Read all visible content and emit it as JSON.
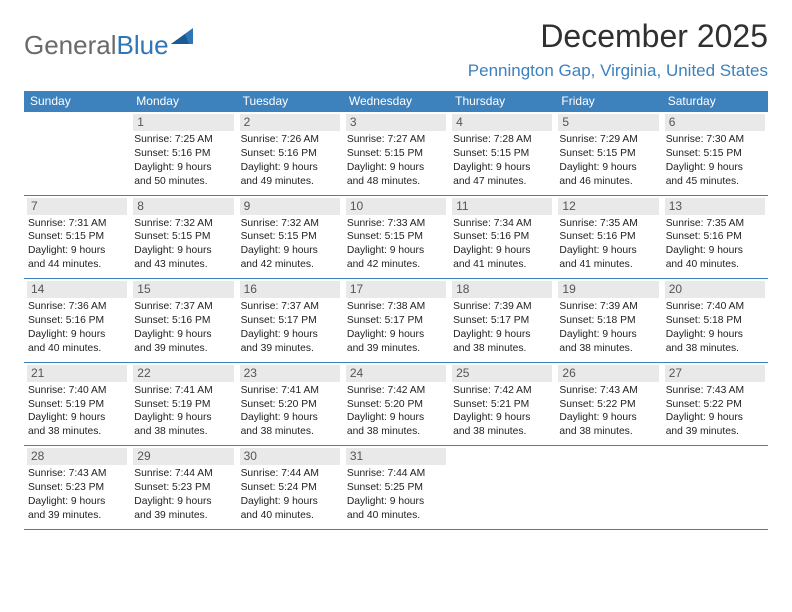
{
  "logo": {
    "text1": "General",
    "text2": "Blue",
    "color1": "#6a6a6a",
    "color2": "#2f76b6"
  },
  "title": "December 2025",
  "location": "Pennington Gap, Virginia, United States",
  "header_bg": "#3d81bd",
  "weekdays": [
    "Sunday",
    "Monday",
    "Tuesday",
    "Wednesday",
    "Thursday",
    "Friday",
    "Saturday"
  ],
  "weeks": [
    [
      null,
      {
        "n": "1",
        "sr": "Sunrise: 7:25 AM",
        "ss": "Sunset: 5:16 PM",
        "d1": "Daylight: 9 hours",
        "d2": "and 50 minutes."
      },
      {
        "n": "2",
        "sr": "Sunrise: 7:26 AM",
        "ss": "Sunset: 5:16 PM",
        "d1": "Daylight: 9 hours",
        "d2": "and 49 minutes."
      },
      {
        "n": "3",
        "sr": "Sunrise: 7:27 AM",
        "ss": "Sunset: 5:15 PM",
        "d1": "Daylight: 9 hours",
        "d2": "and 48 minutes."
      },
      {
        "n": "4",
        "sr": "Sunrise: 7:28 AM",
        "ss": "Sunset: 5:15 PM",
        "d1": "Daylight: 9 hours",
        "d2": "and 47 minutes."
      },
      {
        "n": "5",
        "sr": "Sunrise: 7:29 AM",
        "ss": "Sunset: 5:15 PM",
        "d1": "Daylight: 9 hours",
        "d2": "and 46 minutes."
      },
      {
        "n": "6",
        "sr": "Sunrise: 7:30 AM",
        "ss": "Sunset: 5:15 PM",
        "d1": "Daylight: 9 hours",
        "d2": "and 45 minutes."
      }
    ],
    [
      {
        "n": "7",
        "sr": "Sunrise: 7:31 AM",
        "ss": "Sunset: 5:15 PM",
        "d1": "Daylight: 9 hours",
        "d2": "and 44 minutes."
      },
      {
        "n": "8",
        "sr": "Sunrise: 7:32 AM",
        "ss": "Sunset: 5:15 PM",
        "d1": "Daylight: 9 hours",
        "d2": "and 43 minutes."
      },
      {
        "n": "9",
        "sr": "Sunrise: 7:32 AM",
        "ss": "Sunset: 5:15 PM",
        "d1": "Daylight: 9 hours",
        "d2": "and 42 minutes."
      },
      {
        "n": "10",
        "sr": "Sunrise: 7:33 AM",
        "ss": "Sunset: 5:15 PM",
        "d1": "Daylight: 9 hours",
        "d2": "and 42 minutes."
      },
      {
        "n": "11",
        "sr": "Sunrise: 7:34 AM",
        "ss": "Sunset: 5:16 PM",
        "d1": "Daylight: 9 hours",
        "d2": "and 41 minutes."
      },
      {
        "n": "12",
        "sr": "Sunrise: 7:35 AM",
        "ss": "Sunset: 5:16 PM",
        "d1": "Daylight: 9 hours",
        "d2": "and 41 minutes."
      },
      {
        "n": "13",
        "sr": "Sunrise: 7:35 AM",
        "ss": "Sunset: 5:16 PM",
        "d1": "Daylight: 9 hours",
        "d2": "and 40 minutes."
      }
    ],
    [
      {
        "n": "14",
        "sr": "Sunrise: 7:36 AM",
        "ss": "Sunset: 5:16 PM",
        "d1": "Daylight: 9 hours",
        "d2": "and 40 minutes."
      },
      {
        "n": "15",
        "sr": "Sunrise: 7:37 AM",
        "ss": "Sunset: 5:16 PM",
        "d1": "Daylight: 9 hours",
        "d2": "and 39 minutes."
      },
      {
        "n": "16",
        "sr": "Sunrise: 7:37 AM",
        "ss": "Sunset: 5:17 PM",
        "d1": "Daylight: 9 hours",
        "d2": "and 39 minutes."
      },
      {
        "n": "17",
        "sr": "Sunrise: 7:38 AM",
        "ss": "Sunset: 5:17 PM",
        "d1": "Daylight: 9 hours",
        "d2": "and 39 minutes."
      },
      {
        "n": "18",
        "sr": "Sunrise: 7:39 AM",
        "ss": "Sunset: 5:17 PM",
        "d1": "Daylight: 9 hours",
        "d2": "and 38 minutes."
      },
      {
        "n": "19",
        "sr": "Sunrise: 7:39 AM",
        "ss": "Sunset: 5:18 PM",
        "d1": "Daylight: 9 hours",
        "d2": "and 38 minutes."
      },
      {
        "n": "20",
        "sr": "Sunrise: 7:40 AM",
        "ss": "Sunset: 5:18 PM",
        "d1": "Daylight: 9 hours",
        "d2": "and 38 minutes."
      }
    ],
    [
      {
        "n": "21",
        "sr": "Sunrise: 7:40 AM",
        "ss": "Sunset: 5:19 PM",
        "d1": "Daylight: 9 hours",
        "d2": "and 38 minutes."
      },
      {
        "n": "22",
        "sr": "Sunrise: 7:41 AM",
        "ss": "Sunset: 5:19 PM",
        "d1": "Daylight: 9 hours",
        "d2": "and 38 minutes."
      },
      {
        "n": "23",
        "sr": "Sunrise: 7:41 AM",
        "ss": "Sunset: 5:20 PM",
        "d1": "Daylight: 9 hours",
        "d2": "and 38 minutes."
      },
      {
        "n": "24",
        "sr": "Sunrise: 7:42 AM",
        "ss": "Sunset: 5:20 PM",
        "d1": "Daylight: 9 hours",
        "d2": "and 38 minutes."
      },
      {
        "n": "25",
        "sr": "Sunrise: 7:42 AM",
        "ss": "Sunset: 5:21 PM",
        "d1": "Daylight: 9 hours",
        "d2": "and 38 minutes."
      },
      {
        "n": "26",
        "sr": "Sunrise: 7:43 AM",
        "ss": "Sunset: 5:22 PM",
        "d1": "Daylight: 9 hours",
        "d2": "and 38 minutes."
      },
      {
        "n": "27",
        "sr": "Sunrise: 7:43 AM",
        "ss": "Sunset: 5:22 PM",
        "d1": "Daylight: 9 hours",
        "d2": "and 39 minutes."
      }
    ],
    [
      {
        "n": "28",
        "sr": "Sunrise: 7:43 AM",
        "ss": "Sunset: 5:23 PM",
        "d1": "Daylight: 9 hours",
        "d2": "and 39 minutes."
      },
      {
        "n": "29",
        "sr": "Sunrise: 7:44 AM",
        "ss": "Sunset: 5:23 PM",
        "d1": "Daylight: 9 hours",
        "d2": "and 39 minutes."
      },
      {
        "n": "30",
        "sr": "Sunrise: 7:44 AM",
        "ss": "Sunset: 5:24 PM",
        "d1": "Daylight: 9 hours",
        "d2": "and 40 minutes."
      },
      {
        "n": "31",
        "sr": "Sunrise: 7:44 AM",
        "ss": "Sunset: 5:25 PM",
        "d1": "Daylight: 9 hours",
        "d2": "and 40 minutes."
      },
      null,
      null,
      null
    ]
  ]
}
